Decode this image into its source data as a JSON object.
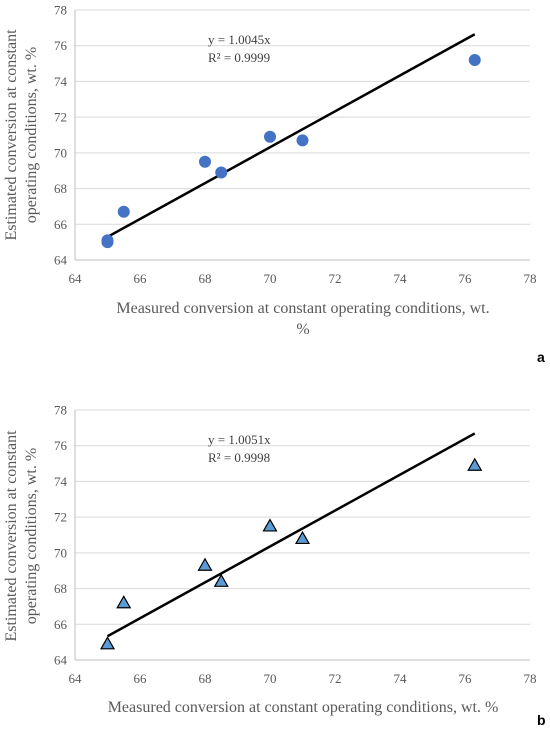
{
  "chart_data": [
    {
      "type": "scatter",
      "panel_label": "a",
      "xlabel_line1": "Measured conversion at constant operating conditions, wt.",
      "xlabel_line2": "%",
      "ylabel_line1": "Estimated conversion at constant",
      "ylabel_line2": "operating conditions, wt. %",
      "xlim": [
        64,
        78
      ],
      "ylim": [
        64,
        78
      ],
      "xticks": [
        64,
        66,
        68,
        70,
        72,
        74,
        76,
        78
      ],
      "yticks": [
        64,
        66,
        68,
        70,
        72,
        74,
        76,
        78
      ],
      "grid": "horizontal",
      "marker": "circle",
      "marker_color": "#4472c4",
      "points": [
        {
          "x": 65.0,
          "y": 65.0
        },
        {
          "x": 65.0,
          "y": 65.1
        },
        {
          "x": 65.5,
          "y": 66.7
        },
        {
          "x": 68.0,
          "y": 69.5
        },
        {
          "x": 68.5,
          "y": 68.9
        },
        {
          "x": 70.0,
          "y": 70.9
        },
        {
          "x": 71.0,
          "y": 70.7
        },
        {
          "x": 76.3,
          "y": 75.2
        }
      ],
      "trendline": {
        "slope": 1.0045,
        "x_from": 65.0,
        "x_to": 76.3,
        "color": "#000000"
      },
      "equation": "y = 1.0045x",
      "r_squared": "R² = 0.9999"
    },
    {
      "type": "scatter",
      "panel_label": "b",
      "xlabel_line1": "Measured conversion at constant operating conditions, wt. %",
      "ylabel_line1": "Estimated conversion at constant",
      "ylabel_line2": "operating conditions, wt. %",
      "xlim": [
        64,
        78
      ],
      "ylim": [
        64,
        78
      ],
      "xticks": [
        64,
        66,
        68,
        70,
        72,
        74,
        76,
        78
      ],
      "yticks": [
        64,
        66,
        68,
        70,
        72,
        74,
        76,
        78
      ],
      "grid": "horizontal",
      "marker": "triangle",
      "marker_color": "#5b9bd5",
      "points": [
        {
          "x": 65.0,
          "y": 64.9
        },
        {
          "x": 65.5,
          "y": 67.2
        },
        {
          "x": 68.0,
          "y": 69.3
        },
        {
          "x": 68.5,
          "y": 68.4
        },
        {
          "x": 70.0,
          "y": 71.5
        },
        {
          "x": 71.0,
          "y": 70.8
        },
        {
          "x": 76.3,
          "y": 74.9
        }
      ],
      "trendline": {
        "slope": 1.0051,
        "x_from": 65.0,
        "x_to": 76.3,
        "color": "#000000"
      },
      "equation": "y = 1.0051x",
      "r_squared": "R² = 0.9998"
    }
  ]
}
